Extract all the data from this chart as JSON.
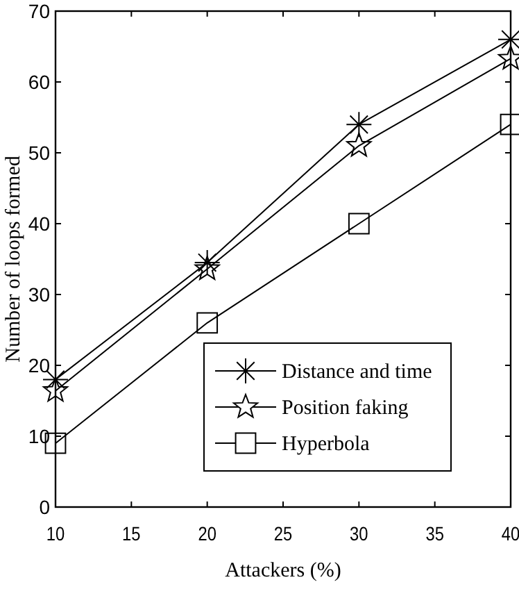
{
  "chart_data": {
    "type": "line",
    "xlabel": "Attackers (%)",
    "ylabel": "Number of loops formed",
    "x": [
      10,
      20,
      30,
      40
    ],
    "xlim": [
      10,
      40
    ],
    "xticks": [
      10,
      15,
      20,
      25,
      30,
      35,
      40
    ],
    "ylim": [
      0,
      70
    ],
    "yticks": [
      0,
      10,
      20,
      30,
      40,
      50,
      60,
      70
    ],
    "grid": false,
    "legend": "bottom right",
    "line_style": "solid",
    "series": [
      {
        "name": "Distance and time",
        "color": "#000000",
        "marker": "cross",
        "values": [
          18,
          34.5,
          54,
          66
        ]
      },
      {
        "name": "Position faking",
        "color": "#000000",
        "marker": "star",
        "values": [
          16.4,
          33.6,
          51,
          63.3
        ]
      },
      {
        "name": "Hyperbola",
        "color": "#000000",
        "marker": "square",
        "values": [
          9,
          26,
          40,
          54
        ]
      }
    ]
  }
}
